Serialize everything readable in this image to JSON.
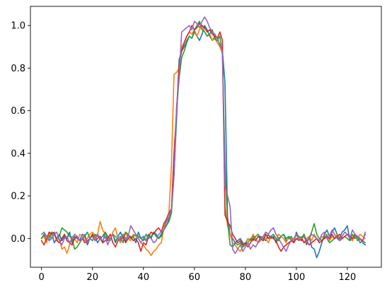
{
  "chart_data": {
    "type": "line",
    "title": "",
    "xlabel": "",
    "ylabel": "",
    "xlim": [
      -4.35,
      133.35
    ],
    "ylim": [
      -0.135,
      1.09
    ],
    "x_ticks": [
      0,
      20,
      40,
      60,
      80,
      100,
      120
    ],
    "x_tick_labels": [
      "0",
      "20",
      "40",
      "60",
      "80",
      "100",
      "120"
    ],
    "y_ticks": [
      0.0,
      0.2,
      0.4,
      0.6,
      0.8,
      1.0
    ],
    "y_tick_labels": [
      "0.0",
      "0.2",
      "0.4",
      "0.6",
      "0.8",
      "1.0"
    ],
    "grid": false,
    "legend": "none",
    "x": [
      0,
      1,
      2,
      3,
      4,
      5,
      6,
      7,
      8,
      9,
      10,
      11,
      12,
      13,
      14,
      15,
      16,
      17,
      18,
      19,
      20,
      21,
      22,
      23,
      24,
      25,
      26,
      27,
      28,
      29,
      30,
      31,
      32,
      33,
      34,
      35,
      36,
      37,
      38,
      39,
      40,
      41,
      42,
      43,
      44,
      45,
      46,
      47,
      48,
      49,
      50,
      51,
      52,
      53,
      54,
      55,
      56,
      57,
      58,
      59,
      60,
      61,
      62,
      63,
      64,
      65,
      66,
      67,
      68,
      69,
      70,
      71,
      72,
      73,
      74,
      75,
      76,
      77,
      78,
      79,
      80,
      81,
      82,
      83,
      84,
      85,
      86,
      87,
      88,
      89,
      90,
      91,
      92,
      93,
      94,
      95,
      96,
      97,
      98,
      99,
      100,
      101,
      102,
      103,
      104,
      105,
      106,
      107,
      108,
      109,
      110,
      111,
      112,
      113,
      114,
      115,
      116,
      117,
      118,
      119,
      120,
      121,
      122,
      123,
      124,
      125,
      126,
      127
    ],
    "series": [
      {
        "color": "#1f77b4",
        "values": [
          0.0,
          0.02,
          -0.01,
          0.01,
          0.03,
          -0.02,
          0.0,
          0.02,
          -0.01,
          0.01,
          0.0,
          0.03,
          -0.02,
          0.01,
          0.0,
          -0.01,
          0.02,
          0.01,
          -0.03,
          0.0,
          0.02,
          0.01,
          -0.02,
          0.0,
          0.01,
          0.03,
          -0.01,
          0.0,
          0.02,
          -0.02,
          0.01,
          0.03,
          0.0,
          -0.01,
          0.02,
          0.0,
          0.01,
          -0.02,
          0.03,
          0.0,
          0.01,
          -0.01,
          0.02,
          0.0,
          0.03,
          0.01,
          0.0,
          0.02,
          0.04,
          0.06,
          0.09,
          0.13,
          0.3,
          0.56,
          0.84,
          0.88,
          0.9,
          0.93,
          0.95,
          0.94,
          0.97,
          0.95,
          0.93,
          0.96,
          1.0,
          0.98,
          0.95,
          0.93,
          0.94,
          0.92,
          0.9,
          0.88,
          0.73,
          0.1,
          0.02,
          0.0,
          -0.02,
          -0.01,
          0.0,
          -0.02,
          -0.03,
          0.0,
          -0.01,
          0.01,
          0.0,
          -0.02,
          0.01,
          0.0,
          -0.01,
          0.02,
          0.0,
          0.01,
          -0.02,
          0.0,
          0.01,
          0.02,
          -0.01,
          0.0,
          0.01,
          -0.02,
          0.03,
          0.0,
          -0.01,
          0.02,
          -0.03,
          0.01,
          -0.04,
          -0.05,
          -0.09,
          -0.06,
          -0.02,
          0.02,
          0.04,
          0.01,
          0.03,
          0.05,
          0.02,
          0.0,
          0.03,
          0.04,
          0.06,
          -0.01,
          0.0,
          0.02,
          -0.01,
          0.0,
          -0.02,
          -0.03
        ]
      },
      {
        "color": "#ff7f0e",
        "values": [
          0.0,
          0.01,
          -0.02,
          0.03,
          0.0,
          0.02,
          -0.01,
          0.0,
          -0.05,
          -0.04,
          -0.07,
          -0.03,
          0.01,
          0.0,
          -0.02,
          0.02,
          0.01,
          -0.01,
          0.0,
          0.02,
          0.03,
          0.01,
          0.02,
          0.08,
          0.04,
          0.02,
          0.01,
          -0.01,
          0.03,
          0.05,
          0.0,
          -0.02,
          0.01,
          0.03,
          0.0,
          -0.01,
          0.02,
          0.01,
          0.0,
          -0.02,
          -0.03,
          -0.05,
          -0.06,
          -0.08,
          -0.06,
          -0.05,
          -0.03,
          -0.02,
          0.05,
          0.09,
          0.12,
          0.35,
          0.77,
          0.78,
          0.8,
          0.9,
          0.92,
          0.95,
          0.97,
          0.96,
          0.98,
          0.95,
          0.98,
          1.0,
          0.97,
          0.95,
          0.96,
          0.93,
          0.95,
          0.92,
          0.9,
          0.87,
          0.15,
          0.06,
          0.02,
          -0.02,
          -0.03,
          -0.05,
          -0.06,
          -0.04,
          -0.02,
          0.0,
          -0.01,
          0.02,
          0.0,
          -0.02,
          -0.01,
          0.01,
          0.0,
          -0.02,
          0.01,
          0.0,
          -0.01,
          0.02,
          0.01,
          0.0,
          -0.02,
          0.01,
          0.0,
          -0.01,
          0.02,
          0.0,
          0.01,
          -0.02,
          0.0,
          0.01,
          -0.01,
          0.02,
          0.0,
          -0.01,
          0.01,
          0.0,
          0.02,
          -0.01,
          0.01,
          0.0,
          0.02,
          -0.01,
          0.0,
          0.01,
          0.02,
          0.0,
          -0.01,
          0.01,
          0.0,
          0.02,
          0.01,
          0.0
        ]
      },
      {
        "color": "#2ca02c",
        "values": [
          0.0,
          0.02,
          0.01,
          -0.01,
          0.03,
          0.02,
          0.0,
          0.01,
          0.05,
          0.04,
          0.03,
          0.01,
          0.0,
          -0.05,
          -0.04,
          -0.02,
          0.0,
          0.01,
          0.03,
          0.0,
          -0.01,
          0.02,
          0.01,
          0.0,
          -0.02,
          0.03,
          0.01,
          0.0,
          0.02,
          -0.01,
          0.0,
          0.01,
          -0.02,
          0.03,
          0.02,
          0.0,
          0.01,
          0.02,
          0.01,
          0.0,
          -0.01,
          0.02,
          0.0,
          0.01,
          0.03,
          0.02,
          0.0,
          0.01,
          0.04,
          0.06,
          0.08,
          0.12,
          0.3,
          0.6,
          0.75,
          0.85,
          0.88,
          0.92,
          0.95,
          0.94,
          0.98,
          1.0,
          1.02,
          0.98,
          0.97,
          0.95,
          0.96,
          0.98,
          0.94,
          0.93,
          0.95,
          0.86,
          0.35,
          0.08,
          -0.03,
          -0.04,
          -0.02,
          -0.03,
          -0.02,
          -0.04,
          -0.03,
          -0.02,
          0.0,
          -0.01,
          0.01,
          0.02,
          0.0,
          -0.01,
          0.02,
          0.0,
          0.01,
          0.02,
          0.0,
          -0.01,
          0.01,
          0.02,
          0.0,
          0.01,
          -0.01,
          0.0,
          0.02,
          0.01,
          0.0,
          0.02,
          -0.01,
          0.0,
          0.03,
          0.07,
          0.02,
          0.0,
          -0.01,
          0.01,
          0.0,
          -0.02,
          -0.01,
          0.0,
          0.01,
          -0.01,
          0.0,
          0.01,
          0.0,
          -0.01,
          0.02,
          0.0,
          0.01,
          -0.02,
          -0.01,
          -0.02
        ]
      },
      {
        "color": "#d62728",
        "values": [
          -0.01,
          -0.03,
          0.0,
          0.03,
          0.02,
          0.03,
          -0.01,
          -0.02,
          0.0,
          0.02,
          -0.01,
          -0.02,
          -0.03,
          0.0,
          0.01,
          -0.01,
          0.0,
          -0.02,
          -0.01,
          0.0,
          0.02,
          -0.01,
          0.0,
          0.01,
          -0.02,
          -0.01,
          0.0,
          0.02,
          -0.02,
          -0.04,
          -0.01,
          0.0,
          0.01,
          -0.02,
          0.0,
          0.01,
          -0.01,
          0.0,
          -0.02,
          -0.06,
          -0.02,
          -0.03,
          0.01,
          0.03,
          0.02,
          0.04,
          0.05,
          0.03,
          0.07,
          0.09,
          0.12,
          0.14,
          0.4,
          0.6,
          0.82,
          0.88,
          0.92,
          0.95,
          0.97,
          1.0,
          0.98,
          0.99,
          1.01,
          1.0,
          0.99,
          0.97,
          0.98,
          0.96,
          0.95,
          0.94,
          0.97,
          0.93,
          0.11,
          0.08,
          0.06,
          0.02,
          0.0,
          -0.02,
          -0.01,
          -0.03,
          -0.02,
          -0.04,
          -0.02,
          0.0,
          -0.01,
          0.01,
          0.0,
          -0.01,
          0.02,
          0.0,
          0.01,
          0.0,
          -0.01,
          -0.04,
          -0.06,
          -0.04,
          -0.03,
          -0.02,
          -0.01,
          -0.02,
          0.0,
          -0.01,
          0.0,
          -0.02,
          -0.01,
          -0.03,
          -0.02,
          -0.01,
          0.0,
          -0.02,
          -0.01,
          0.0,
          0.01,
          0.0,
          0.02,
          0.0,
          0.01,
          0.02,
          0.0,
          0.01,
          0.02,
          0.01,
          0.0,
          0.02,
          0.01,
          0.0,
          -0.01,
          0.02
        ]
      },
      {
        "color": "#9467bd",
        "values": [
          0.02,
          0.03,
          0.01,
          -0.01,
          0.0,
          0.02,
          0.03,
          -0.01,
          -0.03,
          0.0,
          0.01,
          -0.02,
          0.0,
          0.02,
          0.01,
          -0.01,
          0.0,
          0.02,
          -0.02,
          0.0,
          0.01,
          -0.01,
          0.02,
          0.0,
          -0.01,
          0.01,
          -0.03,
          0.0,
          0.02,
          0.01,
          0.0,
          -0.01,
          0.02,
          0.0,
          0.01,
          0.06,
          0.04,
          0.02,
          0.0,
          -0.02,
          0.0,
          -0.01,
          0.01,
          0.0,
          -0.02,
          -0.01,
          0.02,
          0.03,
          0.04,
          0.08,
          0.1,
          0.14,
          0.3,
          0.62,
          0.76,
          0.97,
          0.98,
          0.99,
          1.0,
          0.98,
          1.02,
          1.01,
          0.99,
          1.02,
          1.04,
          1.02,
          0.99,
          0.97,
          0.96,
          0.94,
          0.91,
          0.88,
          0.25,
          0.2,
          0.15,
          -0.05,
          -0.07,
          -0.05,
          -0.03,
          -0.06,
          -0.04,
          -0.02,
          -0.05,
          -0.03,
          -0.04,
          -0.02,
          0.0,
          0.01,
          0.03,
          0.02,
          0.04,
          0.05,
          0.02,
          0.0,
          -0.02,
          -0.04,
          -0.06,
          -0.03,
          -0.01,
          0.0,
          0.02,
          -0.01,
          0.0,
          0.01,
          -0.02,
          0.0,
          0.02,
          0.01,
          0.0,
          -0.01,
          0.02,
          0.03,
          0.0,
          0.01,
          0.04,
          0.02,
          0.0,
          -0.01,
          0.01,
          0.03,
          0.02,
          0.0,
          0.04,
          0.02,
          0.01,
          0.0,
          -0.02,
          0.03
        ]
      }
    ]
  }
}
